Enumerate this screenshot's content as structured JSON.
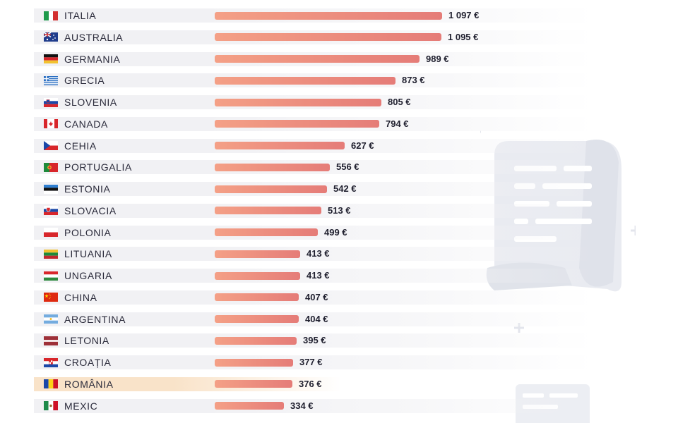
{
  "chart_data": {
    "type": "bar",
    "orientation": "horizontal",
    "xlim": [
      0,
      1097
    ],
    "value_suffix": " €",
    "highlight": "ROMÂNIA",
    "colors": {
      "bar_start": "#f4a086",
      "bar_end": "#e57c78",
      "row_stripe": "#f1f1f4",
      "highlight_row": "#f9e3c9",
      "text": "#2a2a3a"
    },
    "rows": [
      {
        "country": "ITALIA",
        "label": "1 097 €",
        "value": 1097,
        "flag": "italy"
      },
      {
        "country": "AUSTRALIA",
        "label": "1 095 €",
        "value": 1095,
        "flag": "australia"
      },
      {
        "country": "GERMANIA",
        "label": "989 €",
        "value": 989,
        "flag": "germany"
      },
      {
        "country": "GRECIA",
        "label": "873 €",
        "value": 873,
        "flag": "greece"
      },
      {
        "country": "SLOVENIA",
        "label": "805 €",
        "value": 805,
        "flag": "slovenia"
      },
      {
        "country": "CANADA",
        "label": "794 €",
        "value": 794,
        "flag": "canada"
      },
      {
        "country": "CEHIA",
        "label": "627 €",
        "value": 627,
        "flag": "czechia"
      },
      {
        "country": "PORTUGALIA",
        "label": "556 €",
        "value": 556,
        "flag": "portugal"
      },
      {
        "country": "ESTONIA",
        "label": "542 €",
        "value": 542,
        "flag": "estonia"
      },
      {
        "country": "SLOVACIA",
        "label": "513 €",
        "value": 513,
        "flag": "slovakia"
      },
      {
        "country": "POLONIA",
        "label": "499 €",
        "value": 499,
        "flag": "poland"
      },
      {
        "country": "LITUANIA",
        "label": "413 €",
        "value": 413,
        "flag": "lithuania"
      },
      {
        "country": "UNGARIA",
        "label": "413 €",
        "value": 413,
        "flag": "hungary"
      },
      {
        "country": "CHINA",
        "label": "407 €",
        "value": 407,
        "flag": "china"
      },
      {
        "country": "ARGENTINA",
        "label": "404 €",
        "value": 404,
        "flag": "argentina"
      },
      {
        "country": "LETONIA",
        "label": "395 €",
        "value": 395,
        "flag": "latvia"
      },
      {
        "country": "CROAȚIA",
        "label": "377 €",
        "value": 377,
        "flag": "croatia"
      },
      {
        "country": "ROMÂNIA",
        "label": "376 €",
        "value": 376,
        "flag": "romania"
      },
      {
        "country": "MEXIC",
        "label": "334 €",
        "value": 334,
        "flag": "mexico"
      }
    ]
  }
}
